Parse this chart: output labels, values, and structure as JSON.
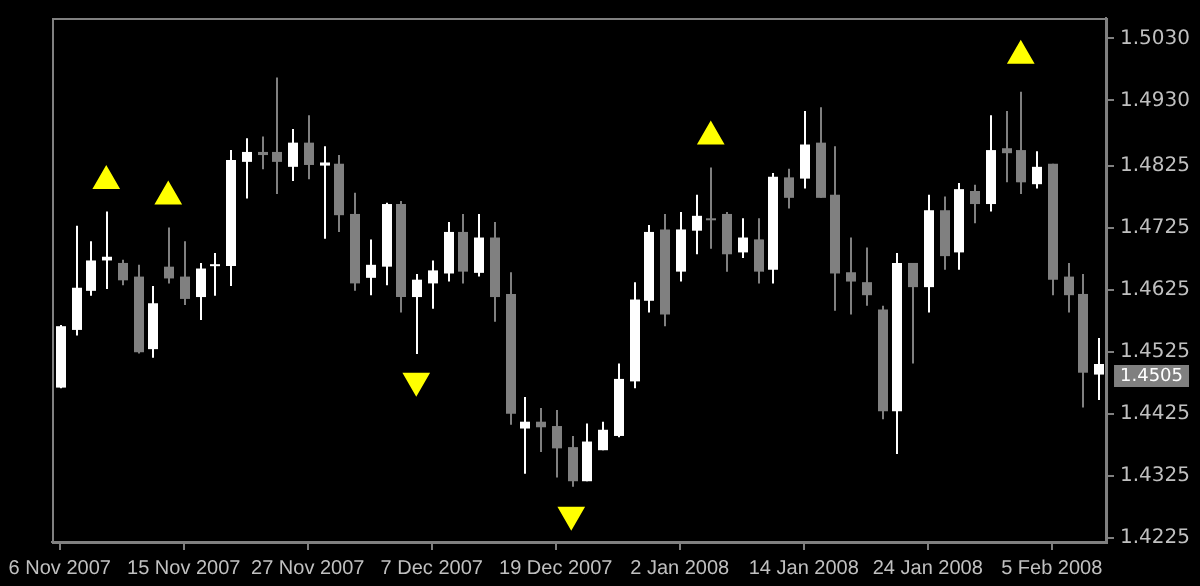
{
  "chart_data": {
    "type": "candlestick",
    "categories": [
      "6 Nov 2007",
      null,
      null,
      null,
      null,
      null,
      null,
      null,
      "15 Nov 2007",
      null,
      null,
      null,
      null,
      null,
      null,
      null,
      "27 Nov 2007",
      null,
      null,
      null,
      null,
      null,
      null,
      null,
      "7 Dec 2007",
      null,
      null,
      null,
      null,
      null,
      null,
      null,
      "19 Dec 2007",
      null,
      null,
      null,
      null,
      null,
      null,
      null,
      "2 Jan 2008",
      null,
      null,
      null,
      null,
      null,
      null,
      null,
      "14 Jan 2008",
      null,
      null,
      null,
      null,
      null,
      null,
      null,
      "24 Jan 2008",
      null,
      null,
      null,
      null,
      null,
      null,
      null,
      "5 Feb 2008",
      null,
      null,
      null
    ],
    "ohlc": [
      [
        1.4467,
        1.4568,
        1.4466,
        1.4566
      ],
      [
        1.456,
        1.4728,
        1.4551,
        1.4628
      ],
      [
        1.4623,
        1.4703,
        1.4615,
        1.4672
      ],
      [
        1.4672,
        1.4751,
        1.4626,
        1.4678
      ],
      [
        1.4668,
        1.4673,
        1.4632,
        1.464
      ],
      [
        1.4646,
        1.4665,
        1.4522,
        1.4524
      ],
      [
        1.4529,
        1.4631,
        1.4515,
        1.4603
      ],
      [
        1.4662,
        1.4725,
        1.4635,
        1.4643
      ],
      [
        1.4646,
        1.4703,
        1.46,
        1.461
      ],
      [
        1.4613,
        1.4668,
        1.4576,
        1.4659
      ],
      [
        1.4663,
        1.4684,
        1.4615,
        1.4666
      ],
      [
        1.4663,
        1.485,
        1.4631,
        1.4834
      ],
      [
        1.4831,
        1.4869,
        1.4772,
        1.4847
      ],
      [
        1.4847,
        1.4872,
        1.4819,
        1.4842
      ],
      [
        1.4847,
        1.4967,
        1.4779,
        1.4831
      ],
      [
        1.4823,
        1.4884,
        1.48,
        1.4862
      ],
      [
        1.4862,
        1.4906,
        1.4803,
        1.4826
      ],
      [
        1.4825,
        1.4856,
        1.4707,
        1.483
      ],
      [
        1.4828,
        1.4842,
        1.4718,
        1.4745
      ],
      [
        1.4747,
        1.4781,
        1.4623,
        1.4635
      ],
      [
        1.4644,
        1.4706,
        1.4616,
        1.4665
      ],
      [
        1.4662,
        1.4765,
        1.4632,
        1.4763
      ],
      [
        1.4763,
        1.4768,
        1.4588,
        1.4613
      ],
      [
        1.4613,
        1.465,
        1.4521,
        1.4641
      ],
      [
        1.4635,
        1.4672,
        1.4594,
        1.4656
      ],
      [
        1.4651,
        1.4734,
        1.4638,
        1.4718
      ],
      [
        1.4718,
        1.4747,
        1.4635,
        1.4654
      ],
      [
        1.4652,
        1.4747,
        1.4646,
        1.4709
      ],
      [
        1.4709,
        1.4734,
        1.4573,
        1.4613
      ],
      [
        1.4618,
        1.4653,
        1.4407,
        1.4425
      ],
      [
        1.4401,
        1.4452,
        1.4328,
        1.4412
      ],
      [
        1.4412,
        1.4434,
        1.4363,
        1.4403
      ],
      [
        1.4405,
        1.4431,
        1.4322,
        1.4369
      ],
      [
        1.4371,
        1.4389,
        1.4307,
        1.4316
      ],
      [
        1.4316,
        1.4409,
        1.4316,
        1.438
      ],
      [
        1.4366,
        1.4412,
        1.4366,
        1.4399
      ],
      [
        1.4389,
        1.4506,
        1.4387,
        1.4481
      ],
      [
        1.4477,
        1.4637,
        1.4466,
        1.4609
      ],
      [
        1.4607,
        1.4729,
        1.4588,
        1.4718
      ],
      [
        1.4722,
        1.4747,
        1.4566,
        1.4585
      ],
      [
        1.4654,
        1.475,
        1.4638,
        1.4722
      ],
      [
        1.472,
        1.4778,
        1.4682,
        1.4744
      ],
      [
        1.474,
        1.4822,
        1.4691,
        1.4738
      ],
      [
        1.4747,
        1.475,
        1.4654,
        1.4682
      ],
      [
        1.4685,
        1.474,
        1.4676,
        1.4709
      ],
      [
        1.4706,
        1.474,
        1.4635,
        1.4654
      ],
      [
        1.4657,
        1.4813,
        1.4635,
        1.4807
      ],
      [
        1.4806,
        1.482,
        1.4756,
        1.4773
      ],
      [
        1.4804,
        1.4913,
        1.4788,
        1.4859
      ],
      [
        1.4862,
        1.4919,
        1.4773,
        1.4773
      ],
      [
        1.4778,
        1.4856,
        1.4591,
        1.4651
      ],
      [
        1.4653,
        1.4709,
        1.4585,
        1.4638
      ],
      [
        1.4637,
        1.4693,
        1.4599,
        1.4616
      ],
      [
        1.4593,
        1.4599,
        1.4416,
        1.4429
      ],
      [
        1.4429,
        1.4684,
        1.436,
        1.4668
      ],
      [
        1.4668,
        1.4668,
        1.4506,
        1.4629
      ],
      [
        1.4629,
        1.4778,
        1.4588,
        1.4753
      ],
      [
        1.4753,
        1.4775,
        1.4657,
        1.4679
      ],
      [
        1.4685,
        1.4797,
        1.4657,
        1.4787
      ],
      [
        1.4784,
        1.4794,
        1.4732,
        1.4763
      ],
      [
        1.4763,
        1.4906,
        1.4751,
        1.485
      ],
      [
        1.4853,
        1.4913,
        1.4798,
        1.4845
      ],
      [
        1.485,
        1.4944,
        1.4779,
        1.4798
      ],
      [
        1.4795,
        1.4848,
        1.4788,
        1.4823
      ],
      [
        1.4828,
        1.4828,
        1.4616,
        1.4641
      ],
      [
        1.4646,
        1.4668,
        1.4588,
        1.4616
      ],
      [
        1.4618,
        1.465,
        1.4435,
        1.4491
      ],
      [
        1.4488,
        1.4547,
        1.4447,
        1.4505
      ]
    ],
    "colors": [
      "#ffffff",
      "#ffffff",
      "#ffffff",
      "#ffffff",
      "#808080",
      "#808080",
      "#ffffff",
      "#808080",
      "#808080",
      "#ffffff",
      "#ffffff",
      "#ffffff",
      "#ffffff",
      "#808080",
      "#808080",
      "#ffffff",
      "#808080",
      "#ffffff",
      "#808080",
      "#808080",
      "#ffffff",
      "#ffffff",
      "#808080",
      "#ffffff",
      "#ffffff",
      "#ffffff",
      "#808080",
      "#ffffff",
      "#808080",
      "#808080",
      "#ffffff",
      "#808080",
      "#808080",
      "#808080",
      "#ffffff",
      "#ffffff",
      "#ffffff",
      "#ffffff",
      "#ffffff",
      "#808080",
      "#ffffff",
      "#ffffff",
      "#808080",
      "#808080",
      "#ffffff",
      "#808080",
      "#ffffff",
      "#808080",
      "#ffffff",
      "#808080",
      "#808080",
      "#808080",
      "#808080",
      "#808080",
      "#ffffff",
      "#808080",
      "#ffffff",
      "#808080",
      "#ffffff",
      "#808080",
      "#ffffff",
      "#808080",
      "#808080",
      "#ffffff",
      "#808080",
      "#808080",
      "#808080",
      "#ffffff"
    ],
    "series": [
      {
        "type": "scatter",
        "marker": "triangle",
        "color": "#ffff00",
        "values": [
          null,
          null,
          null,
          1.48,
          null,
          null,
          null,
          1.4775,
          null,
          null,
          null,
          null,
          null,
          null,
          null,
          null,
          null,
          null,
          null,
          null,
          null,
          null,
          null,
          1.4478,
          null,
          null,
          null,
          null,
          null,
          null,
          null,
          null,
          null,
          1.4262,
          null,
          null,
          null,
          null,
          null,
          null,
          null,
          null,
          1.4872,
          null,
          null,
          null,
          null,
          null,
          null,
          null,
          null,
          null,
          null,
          null,
          null,
          null,
          null,
          null,
          null,
          null,
          null,
          null,
          1.5002,
          null,
          null,
          null,
          null,
          null
        ]
      }
    ],
    "ylim": [
      1.4218,
      1.5063
    ],
    "yticks": [
      {
        "value": 1.503,
        "label": "1.5030"
      },
      {
        "value": 1.493,
        "label": "1.4930"
      },
      {
        "value": 1.4825,
        "label": "1.4825"
      },
      {
        "value": 1.4725,
        "label": "1.4725"
      },
      {
        "value": 1.4625,
        "label": "1.4625"
      },
      {
        "value": 1.4525,
        "label": "1.4525"
      },
      {
        "value": 1.4425,
        "label": "1.4425"
      },
      {
        "value": 1.4325,
        "label": "1.4325"
      },
      {
        "value": 1.4225,
        "label": "1.4225"
      }
    ],
    "grid": false,
    "legend": false,
    "annotations": [
      "1.4505"
    ]
  }
}
